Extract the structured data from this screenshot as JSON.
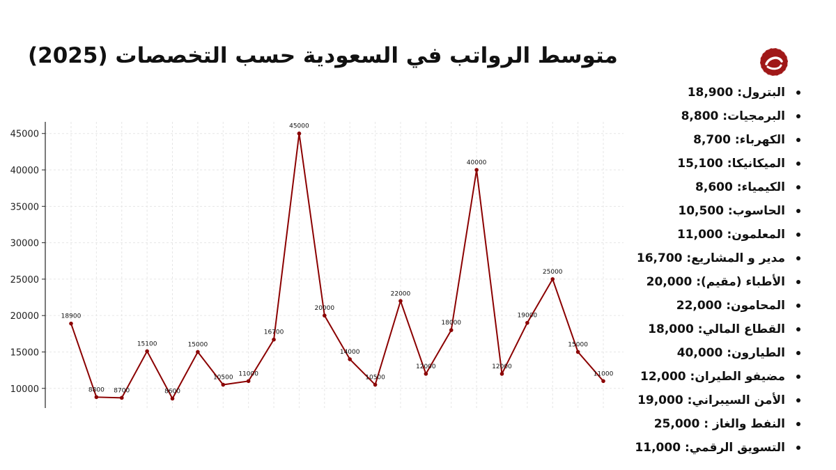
{
  "title": "متوسط الرواتب في السعودية حسب التخصصات (2025)",
  "logo": {
    "icon": "brand-logo-icon",
    "color": "#a01818"
  },
  "salary_list": [
    "البترول: 18,900",
    "البرمجيات: 8,800",
    "الكهرباء: 8,700",
    "الميكانيكا: 15,100",
    "الكيمياء: 8,600",
    "الحاسوب: 10,500",
    "المعلمون: 11,000",
    "مدير و المشاريع: 16,700",
    "الأطباء (مقيم): 20,000",
    "المحامون: 22,000",
    "القطاع المالي: 18,000",
    "الطيارون: 40,000",
    "مضيفو الطيران: 12,000",
    "الأمن السيبراني: 19,000",
    "النفط والغاز : 25,000",
    "التسويق الرقمي: 11,000"
  ],
  "chart_data": {
    "type": "line",
    "values": [
      18900,
      8800,
      8700,
      15100,
      8600,
      15000,
      10500,
      11000,
      16700,
      45000,
      20000,
      14000,
      10500,
      22000,
      12000,
      18000,
      40000,
      12000,
      19000,
      25000,
      15000,
      11000
    ],
    "data_labels": [
      "18900",
      "8800",
      "8700",
      "15100",
      "8600",
      "15000",
      "10500",
      "11000",
      "16700",
      "45000",
      "20000",
      "14000",
      "10500",
      "22000",
      "12000",
      "18000",
      "40000",
      "12000",
      "19000",
      "25000",
      "15000",
      "11000"
    ],
    "yticks": [
      10000,
      15000,
      20000,
      25000,
      30000,
      35000,
      40000,
      45000
    ],
    "ytick_labels": [
      "10000",
      "15000",
      "20000",
      "25000",
      "30000",
      "35000",
      "40000",
      "45000"
    ],
    "ylim": [
      7300,
      46600
    ],
    "grid": true,
    "line_color": "#8b0000",
    "grid_color": "#e6e6e6"
  }
}
